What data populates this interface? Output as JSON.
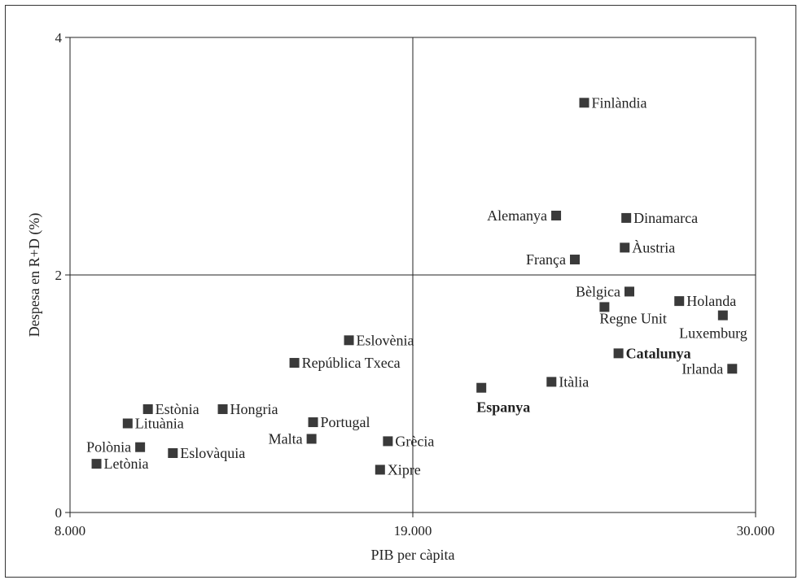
{
  "chart_data": {
    "type": "scatter",
    "title": "",
    "xlabel": "PIB per càpita",
    "ylabel": "Despesa en R+D (%)",
    "xlim": [
      8000,
      30000
    ],
    "ylim": [
      0,
      4
    ],
    "xticks": [
      {
        "value": 8000,
        "label": "8.000"
      },
      {
        "value": 19000,
        "label": "19.000"
      },
      {
        "value": 30000,
        "label": "30.000"
      }
    ],
    "yticks": [
      {
        "value": 0,
        "label": "0"
      },
      {
        "value": 2,
        "label": "2"
      },
      {
        "value": 4,
        "label": "4"
      }
    ],
    "reference_lines": {
      "x": 19000,
      "y": 2
    },
    "grid": false,
    "legend": "none",
    "marker_color": "#3a3a3a",
    "points": [
      {
        "name": "Finlàndia",
        "x": 24500,
        "y": 3.45,
        "label_side": "right",
        "bold": false
      },
      {
        "name": "Alemanya",
        "x": 23600,
        "y": 2.5,
        "label_side": "left",
        "bold": false
      },
      {
        "name": "Dinamarca",
        "x": 25850,
        "y": 2.48,
        "label_side": "right",
        "bold": false
      },
      {
        "name": "Àustria",
        "x": 25800,
        "y": 2.23,
        "label_side": "right",
        "bold": false
      },
      {
        "name": "França",
        "x": 24200,
        "y": 2.13,
        "label_side": "left",
        "bold": false
      },
      {
        "name": "Bèlgica",
        "x": 25950,
        "y": 1.86,
        "label_side": "left",
        "bold": false
      },
      {
        "name": "Holanda",
        "x": 27550,
        "y": 1.78,
        "label_side": "right",
        "bold": false
      },
      {
        "name": "Regne Unit",
        "x": 25150,
        "y": 1.73,
        "label_side": "below-right",
        "bold": false
      },
      {
        "name": "Luxemburg",
        "x": 28950,
        "y": 1.66,
        "label_side": "below-left",
        "bold": false
      },
      {
        "name": "Catalunya",
        "x": 25600,
        "y": 1.34,
        "label_side": "right",
        "bold": true
      },
      {
        "name": "Irlanda",
        "x": 29250,
        "y": 1.21,
        "label_side": "left",
        "bold": false
      },
      {
        "name": "Itàlia",
        "x": 23450,
        "y": 1.1,
        "label_side": "right",
        "bold": false
      },
      {
        "name": "Espanya",
        "x": 21200,
        "y": 1.05,
        "label_side": "below",
        "bold": true
      },
      {
        "name": "Eslovènia",
        "x": 16950,
        "y": 1.45,
        "label_side": "right",
        "bold": false
      },
      {
        "name": "República Txeca",
        "x": 15200,
        "y": 1.26,
        "label_side": "right",
        "bold": false
      },
      {
        "name": "Estònia",
        "x": 10500,
        "y": 0.87,
        "label_side": "right",
        "bold": false
      },
      {
        "name": "Hongria",
        "x": 12900,
        "y": 0.87,
        "label_side": "right",
        "bold": false
      },
      {
        "name": "Lituània",
        "x": 9850,
        "y": 0.75,
        "label_side": "right",
        "bold": false
      },
      {
        "name": "Portugal",
        "x": 15800,
        "y": 0.76,
        "label_side": "right",
        "bold": false
      },
      {
        "name": "Malta",
        "x": 15750,
        "y": 0.62,
        "label_side": "left",
        "bold": false
      },
      {
        "name": "Grècia",
        "x": 18200,
        "y": 0.6,
        "label_side": "right",
        "bold": false
      },
      {
        "name": "Polònia",
        "x": 10250,
        "y": 0.55,
        "label_side": "left",
        "bold": false
      },
      {
        "name": "Eslovàquia",
        "x": 11300,
        "y": 0.5,
        "label_side": "right",
        "bold": false
      },
      {
        "name": "Letònia",
        "x": 8850,
        "y": 0.41,
        "label_side": "right",
        "bold": false
      },
      {
        "name": "Xipre",
        "x": 17950,
        "y": 0.36,
        "label_side": "right",
        "bold": false
      }
    ]
  }
}
